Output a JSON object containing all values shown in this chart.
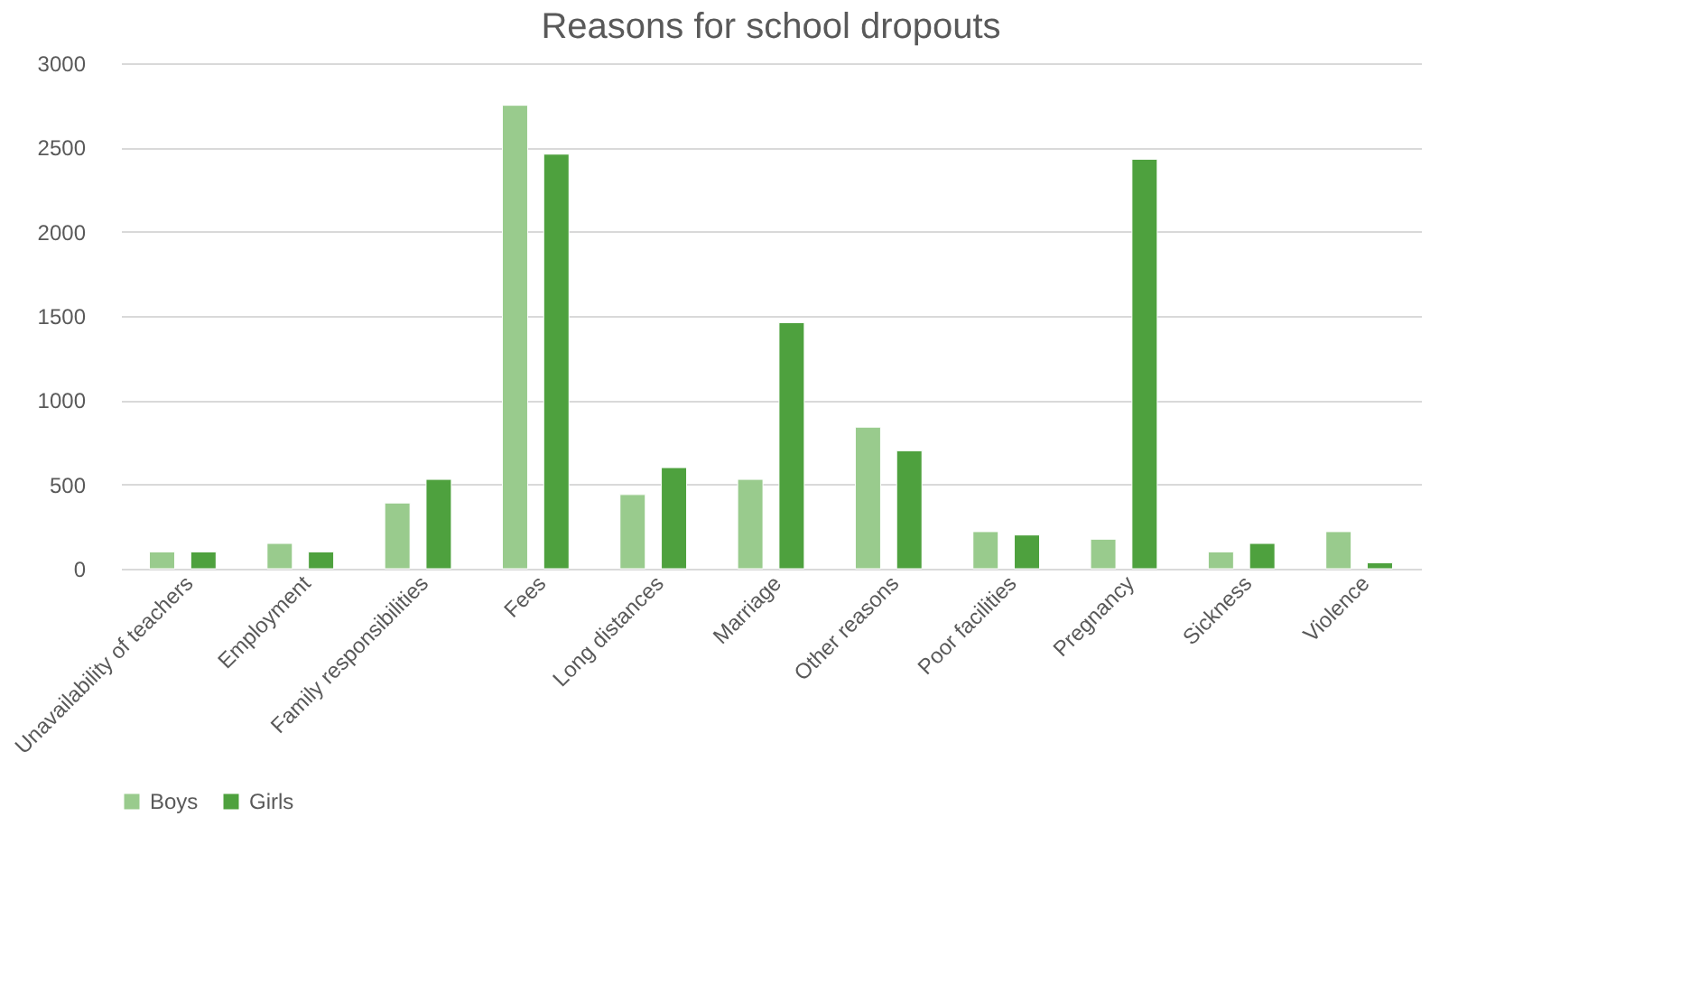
{
  "chart_data": {
    "type": "bar",
    "title": "Reasons for school dropouts",
    "categories": [
      "Unavailability of teachers",
      "Employment",
      "Family responsibilities",
      "Fees",
      "Long distances",
      "Marriage",
      "Other reasons",
      "Poor facilities",
      "Pregnancy",
      "Sickness",
      "Violence"
    ],
    "series": [
      {
        "name": "Boys",
        "color": "#99cb8d",
        "values": [
          100,
          150,
          390,
          2750,
          440,
          530,
          840,
          220,
          175,
          100,
          220
        ]
      },
      {
        "name": "Girls",
        "color": "#4ea13e",
        "values": [
          100,
          100,
          530,
          2460,
          600,
          1460,
          700,
          200,
          2430,
          150,
          35
        ]
      }
    ],
    "ylim": [
      0,
      3000
    ],
    "yticks": [
      0,
      500,
      1000,
      1500,
      2000,
      2500,
      3000
    ],
    "grid": "y",
    "legend": "bottom"
  }
}
